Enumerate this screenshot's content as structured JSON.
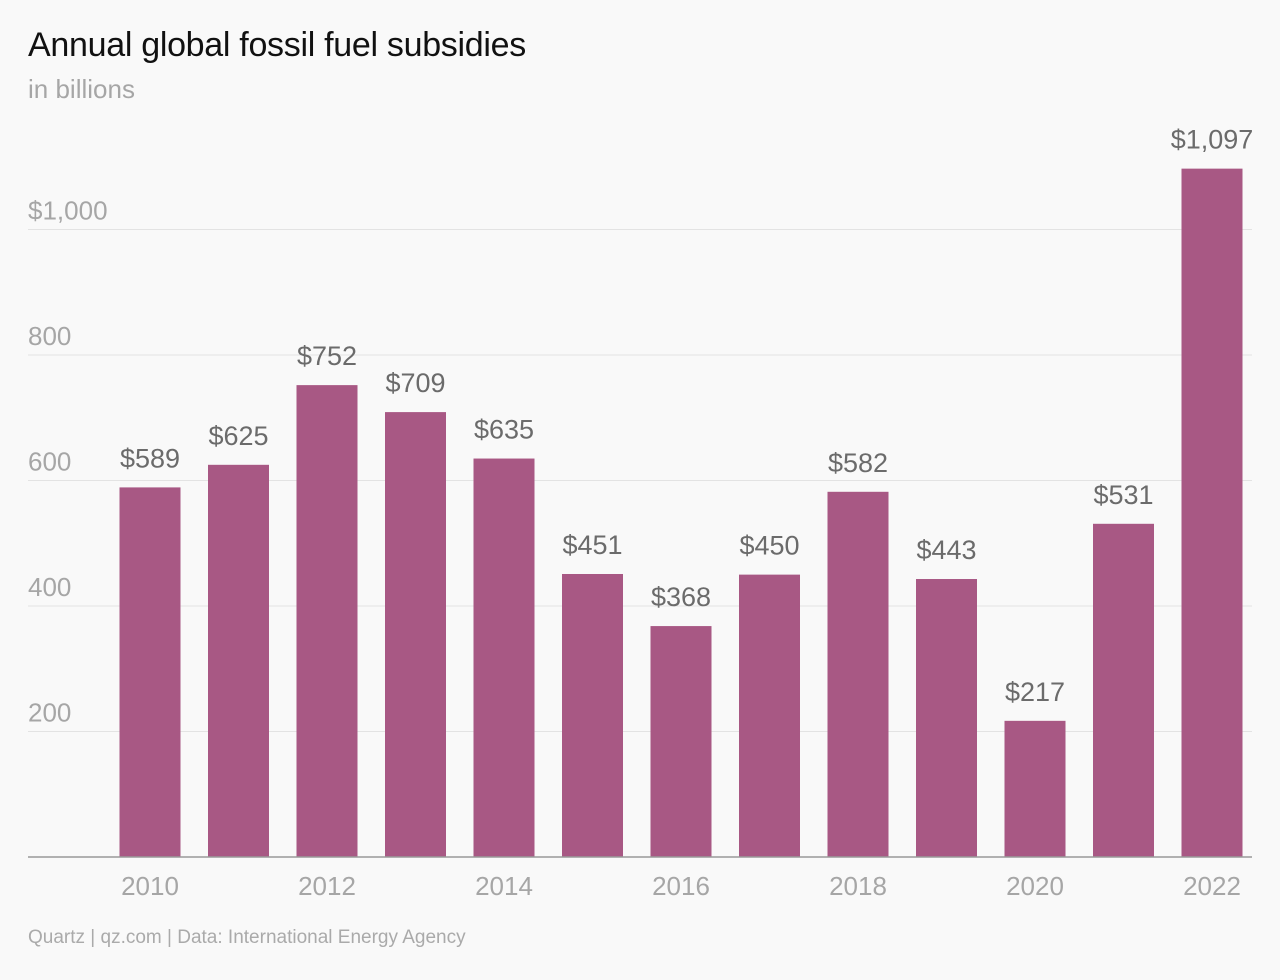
{
  "title": "Annual global fossil fuel subsidies",
  "subtitle": "in billions",
  "source": "Quartz | qz.com | Data: International Energy Agency",
  "colors": {
    "bar": "#a85884",
    "gridline": "#e3e3e3",
    "baseline": "#999999",
    "axis_text": "#a6a6a6",
    "data_label": "#6b6b6b"
  },
  "chart_data": {
    "type": "bar",
    "categories": [
      "2010",
      "2011",
      "2012",
      "2013",
      "2014",
      "2015",
      "2016",
      "2017",
      "2018",
      "2019",
      "2020",
      "2021",
      "2022"
    ],
    "values": [
      589,
      625,
      752,
      709,
      635,
      451,
      368,
      450,
      582,
      443,
      217,
      531,
      1097
    ],
    "data_labels": [
      "$589",
      "$625",
      "$752",
      "$709",
      "$635",
      "$451",
      "$368",
      "$450",
      "$582",
      "$443",
      "$217",
      "$531",
      "$1,097"
    ],
    "x_tick_labels": [
      "2010",
      "",
      "2012",
      "",
      "2014",
      "",
      "2016",
      "",
      "2018",
      "",
      "2020",
      "",
      "2022"
    ],
    "y_ticks": [
      200,
      400,
      600,
      800,
      1000
    ],
    "y_tick_labels": [
      "200",
      "400",
      "600",
      "800",
      "$1,000"
    ],
    "ylim": [
      0,
      1100
    ],
    "grid": true,
    "legend": "none",
    "xlabel": "",
    "ylabel": ""
  }
}
